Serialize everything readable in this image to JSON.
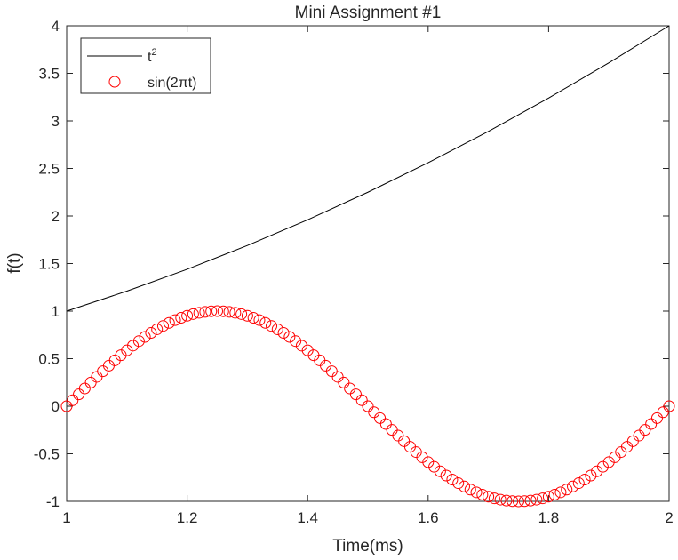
{
  "chart_data": {
    "type": "line",
    "title": "Mini Assignment #1",
    "xlabel": "Time(ms)",
    "ylabel": "f(t)",
    "xlim": [
      1,
      2
    ],
    "ylim": [
      -1,
      4
    ],
    "xticks": [
      1,
      1.2,
      1.4,
      1.6,
      1.8,
      2
    ],
    "xticklabels": [
      "1",
      "1.2",
      "1.4",
      "1.6",
      "1.8",
      "2"
    ],
    "yticks": [
      -1,
      -0.5,
      0,
      0.5,
      1,
      1.5,
      2,
      2.5,
      3,
      3.5,
      4
    ],
    "yticklabels": [
      "-1",
      "-0.5",
      "0",
      "0.5",
      "1",
      "1.5",
      "2",
      "2.5",
      "3",
      "3.5",
      "4"
    ],
    "grid": false,
    "legend_position": "top-left",
    "series": [
      {
        "name_base": "t",
        "name_sup": "2",
        "style": "line",
        "color": "#000000",
        "x": [
          1.0,
          1.1,
          1.2,
          1.3,
          1.4,
          1.5,
          1.6,
          1.7,
          1.8,
          1.9,
          2.0
        ],
        "y": [
          1.0,
          1.21,
          1.44,
          1.69,
          1.96,
          2.25,
          2.56,
          2.89,
          3.24,
          3.61,
          4.0
        ]
      },
      {
        "name_prefix": "sin(2",
        "name_symbol": "π",
        "name_suffix": "t)",
        "style": "markers",
        "marker": "circle",
        "color": "#ff0000",
        "x_start": 1.0,
        "x_end": 2.0,
        "x_step": 0.01,
        "y": [
          0.0,
          0.063,
          0.125,
          0.187,
          0.249,
          0.309,
          0.368,
          0.426,
          0.482,
          0.536,
          0.588,
          0.637,
          0.685,
          0.729,
          0.771,
          0.809,
          0.844,
          0.876,
          0.905,
          0.93,
          0.951,
          0.969,
          0.982,
          0.992,
          0.998,
          1.0,
          0.998,
          0.992,
          0.982,
          0.969,
          0.951,
          0.93,
          0.905,
          0.876,
          0.844,
          0.809,
          0.771,
          0.729,
          0.685,
          0.637,
          0.588,
          0.536,
          0.482,
          0.426,
          0.368,
          0.309,
          0.249,
          0.187,
          0.125,
          0.063,
          0.0,
          -0.063,
          -0.125,
          -0.187,
          -0.249,
          -0.309,
          -0.368,
          -0.426,
          -0.482,
          -0.536,
          -0.588,
          -0.637,
          -0.685,
          -0.729,
          -0.771,
          -0.809,
          -0.844,
          -0.876,
          -0.905,
          -0.93,
          -0.951,
          -0.969,
          -0.982,
          -0.992,
          -0.998,
          -1.0,
          -0.998,
          -0.992,
          -0.982,
          -0.969,
          -0.951,
          -0.93,
          -0.905,
          -0.876,
          -0.844,
          -0.809,
          -0.771,
          -0.729,
          -0.685,
          -0.637,
          -0.588,
          -0.536,
          -0.482,
          -0.426,
          -0.368,
          -0.309,
          -0.249,
          -0.187,
          -0.125,
          -0.063,
          0.0
        ]
      }
    ]
  }
}
